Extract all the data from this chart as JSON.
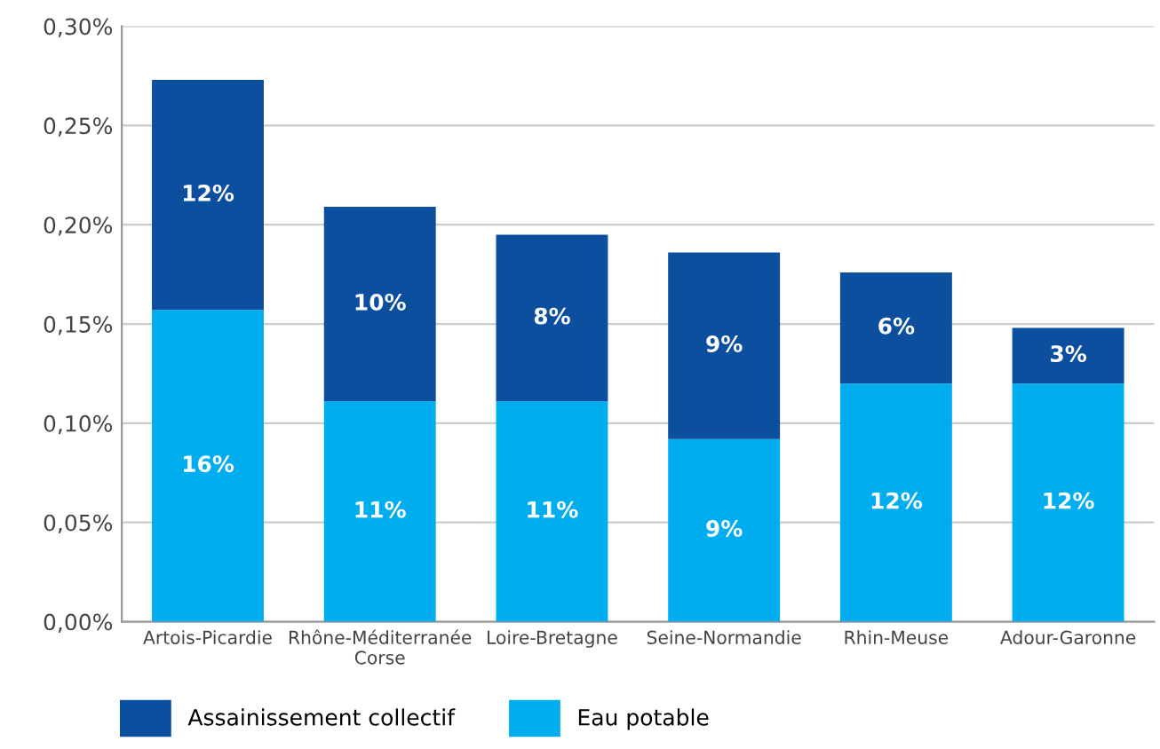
{
  "chart_data": {
    "type": "bar",
    "stacked": true,
    "categories": [
      "Artois-Picardie",
      "Rhône-Méditerranée\nCorse",
      "Loire-Bretagne",
      "Seine-Normandie",
      "Rhin-Meuse",
      "Adour-Garonne"
    ],
    "series": [
      {
        "name": "Eau potable",
        "color": "#00aeef",
        "values": [
          0.157,
          0.111,
          0.111,
          0.092,
          0.12,
          0.12
        ],
        "value_labels": [
          "16%",
          "11%",
          "11%",
          "9%",
          "12%",
          "12%"
        ]
      },
      {
        "name": "Assainissement collectif",
        "color": "#0b4f9e",
        "values": [
          0.116,
          0.098,
          0.084,
          0.094,
          0.056,
          0.028
        ],
        "value_labels": [
          "12%",
          "10%",
          "8%",
          "9%",
          "6%",
          "3%"
        ]
      }
    ],
    "ylim": [
      0,
      0.3
    ],
    "yticks": [
      {
        "value": 0,
        "label": "0,00%"
      },
      {
        "value": 0.05,
        "label": "0,05%"
      },
      {
        "value": 0.1,
        "label": "0,10%"
      },
      {
        "value": 0.15,
        "label": "0,15%"
      },
      {
        "value": 0.2,
        "label": "0,20%"
      },
      {
        "value": 0.25,
        "label": "0,25%"
      },
      {
        "value": 0.3,
        "label": "0,30%"
      }
    ],
    "grid": "y",
    "legend": "bottom"
  }
}
